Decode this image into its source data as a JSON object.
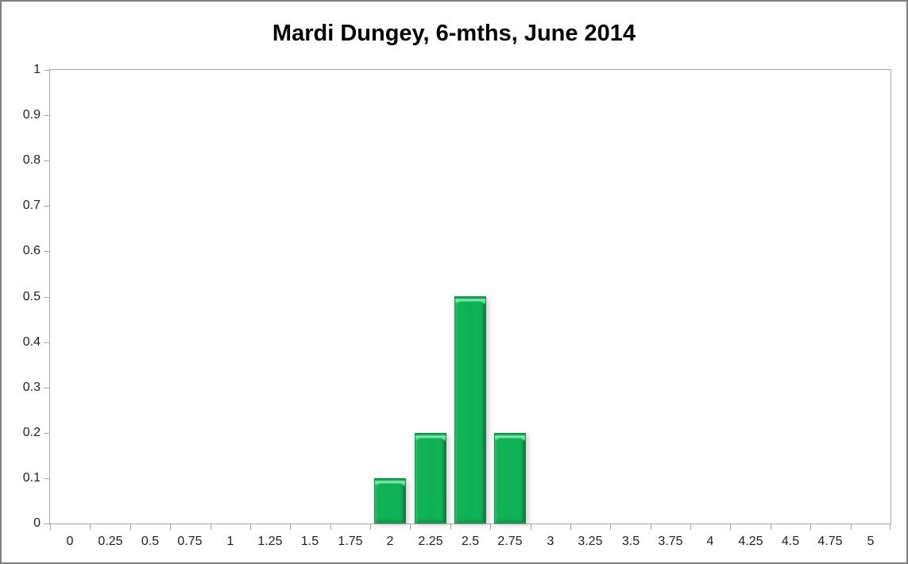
{
  "window": {
    "background_color": "#ffffff",
    "frame_border_color": "#7f7f7f"
  },
  "chart_data": {
    "type": "bar",
    "title": "Mardi Dungey, 6-mths, June 2014",
    "xlabel": "",
    "ylabel": "",
    "categories": [
      "0",
      "0.25",
      "0.5",
      "0.75",
      "1",
      "1.25",
      "1.5",
      "1.75",
      "2",
      "2.25",
      "2.5",
      "2.75",
      "3",
      "3.25",
      "3.5",
      "3.75",
      "4",
      "4.25",
      "4.5",
      "4.75",
      "5"
    ],
    "values": [
      0,
      0,
      0,
      0,
      0,
      0,
      0,
      0,
      0.1,
      0.2,
      0.5,
      0.2,
      0,
      0,
      0,
      0,
      0,
      0,
      0,
      0,
      0
    ],
    "ylim": [
      0,
      1
    ],
    "y_ticks": [
      0,
      0.1,
      0.2,
      0.3,
      0.4,
      0.5,
      0.6,
      0.7,
      0.8,
      0.9,
      1
    ],
    "y_tick_labels": [
      "0",
      "0.1",
      "0.2",
      "0.3",
      "0.4",
      "0.5",
      "0.6",
      "0.7",
      "0.8",
      "0.9",
      "1"
    ],
    "grid": "off",
    "legend": "none",
    "bar_color": "#0db155",
    "bar_highlight_color": "#8bedb2",
    "bar_edge_color": "#0a9148",
    "axis_color": "#a6a6a6",
    "label_color": "#1f1f1f",
    "title_color": "#000000"
  }
}
